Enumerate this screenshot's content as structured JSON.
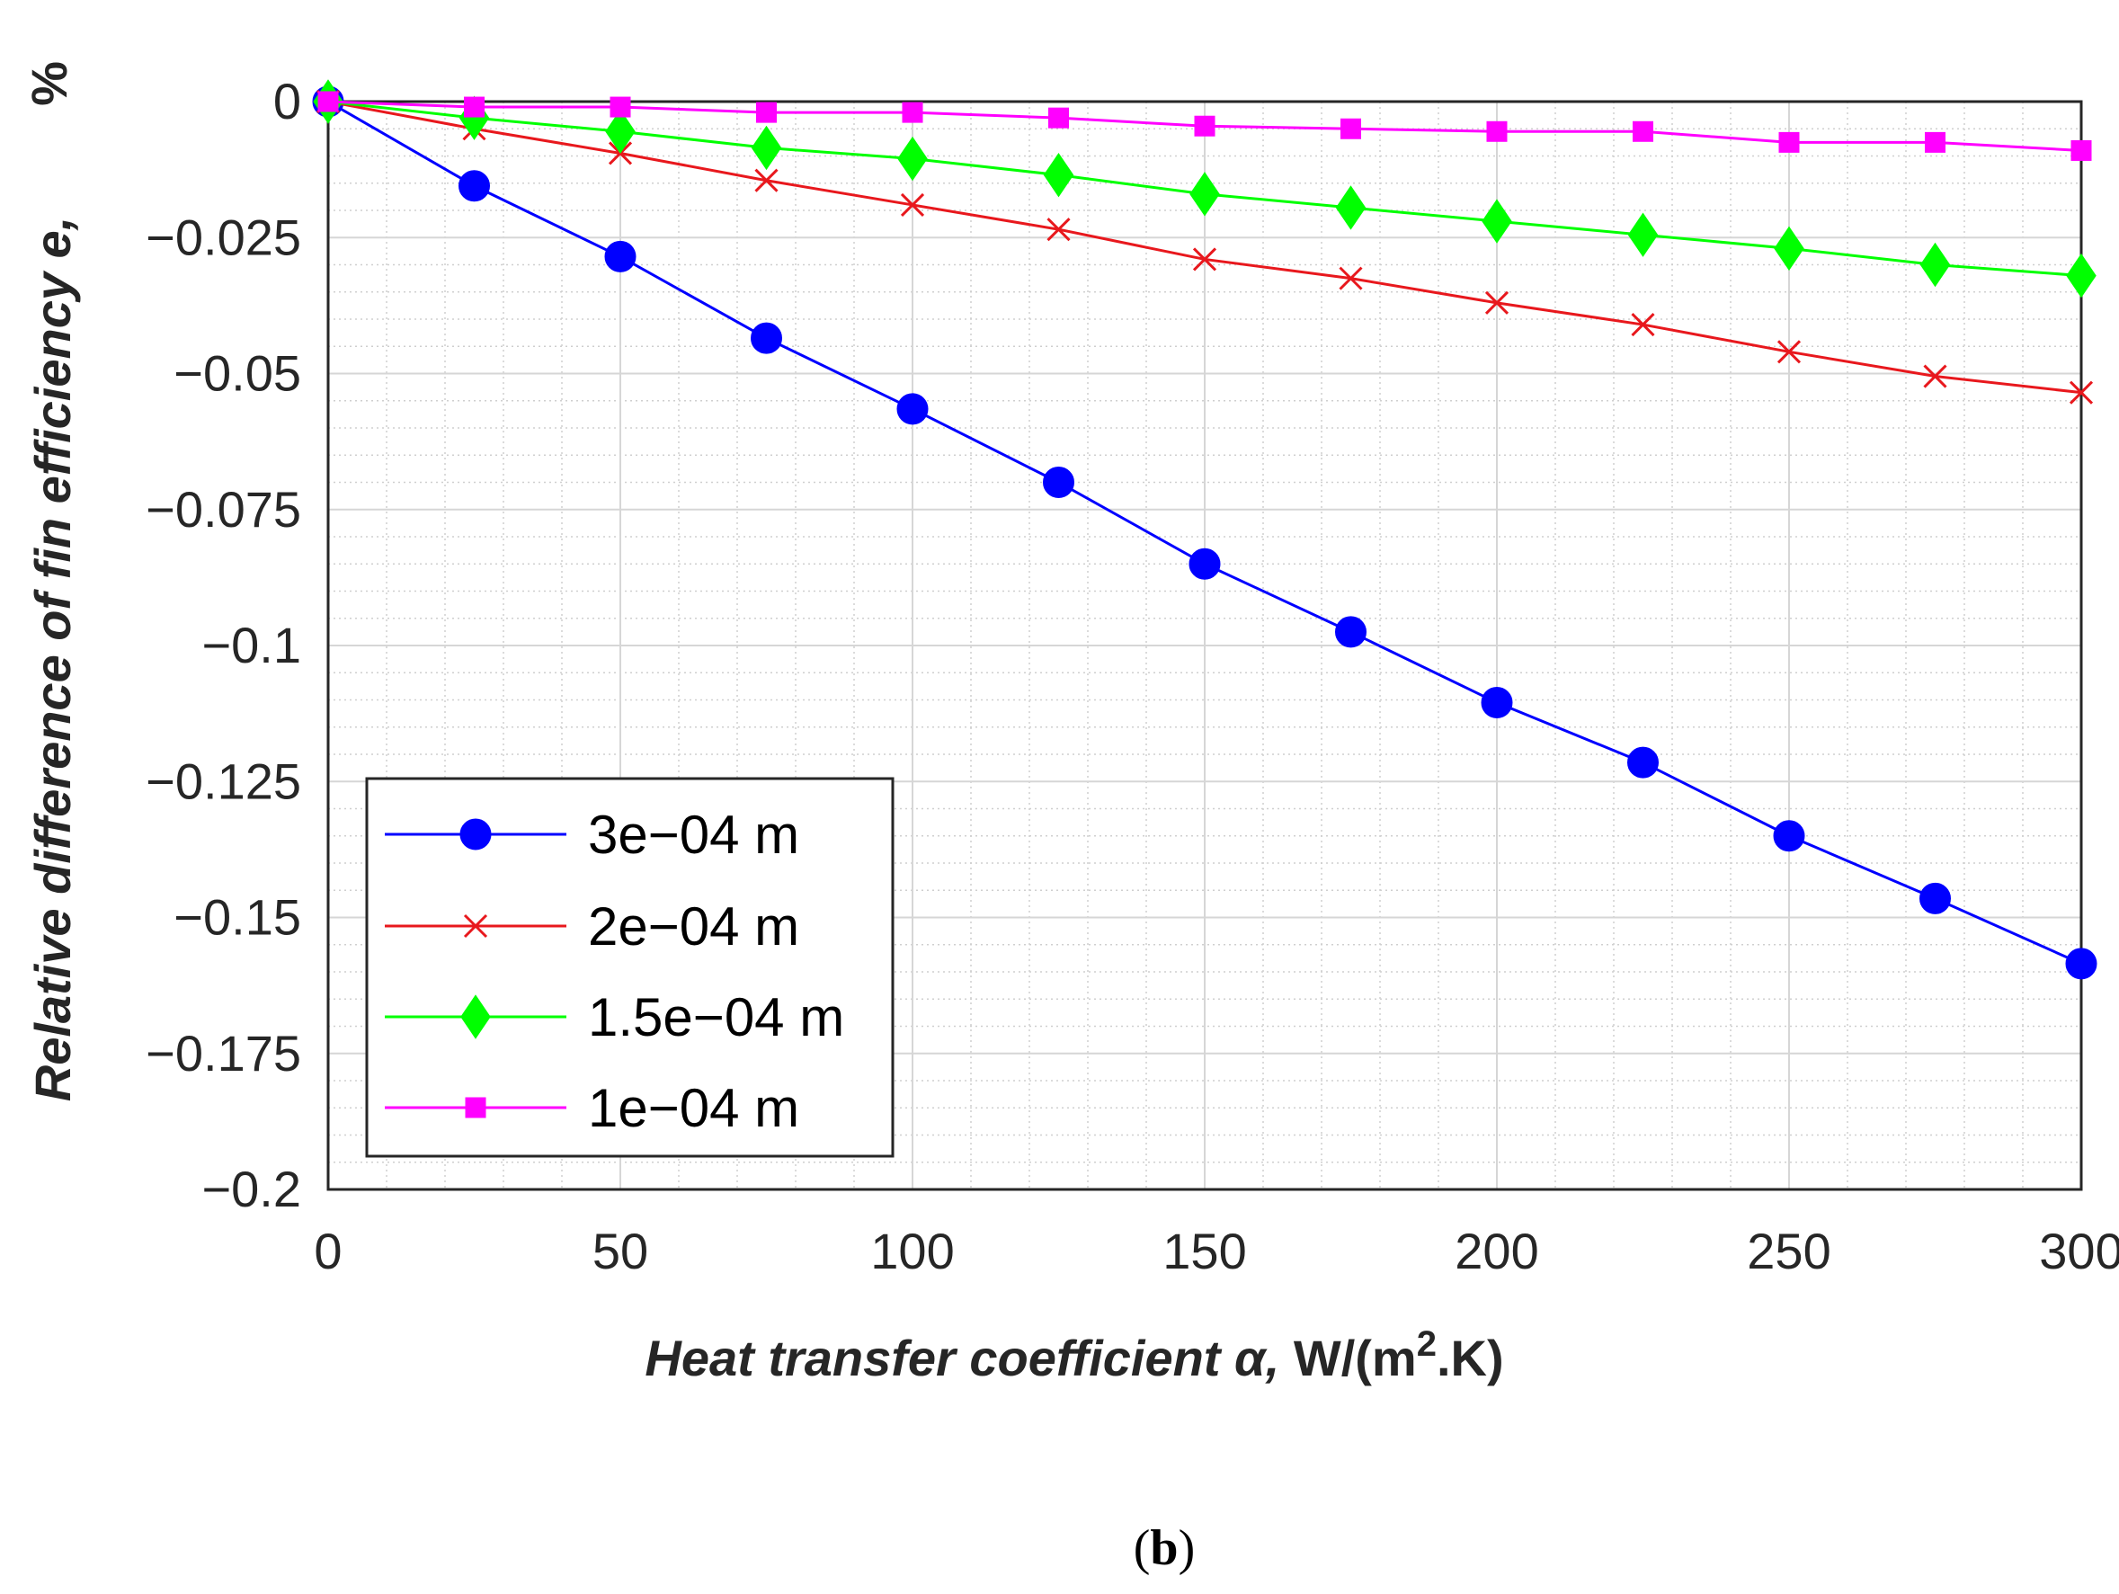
{
  "chart_data": {
    "type": "line",
    "x": [
      0,
      25,
      50,
      75,
      100,
      125,
      150,
      175,
      200,
      225,
      250,
      275,
      300
    ],
    "series": [
      {
        "name": "3e−04 m",
        "color": "#0000ff",
        "marker": "circle",
        "values": [
          0,
          -0.0155,
          -0.0285,
          -0.0435,
          -0.0565,
          -0.07,
          -0.085,
          -0.0975,
          -0.1105,
          -0.1215,
          -0.135,
          -0.1465,
          -0.1585
        ]
      },
      {
        "name": "2e−04 m",
        "color": "#e8181d",
        "marker": "x",
        "values": [
          0,
          -0.005,
          -0.0095,
          -0.0145,
          -0.019,
          -0.0235,
          -0.029,
          -0.0325,
          -0.037,
          -0.041,
          -0.046,
          -0.0505,
          -0.0535
        ]
      },
      {
        "name": "1.5e−04 m",
        "color": "#00ff00",
        "marker": "diamond",
        "values": [
          0,
          -0.003,
          -0.0055,
          -0.0085,
          -0.0105,
          -0.0135,
          -0.017,
          -0.0195,
          -0.022,
          -0.0245,
          -0.027,
          -0.03,
          -0.032
        ]
      },
      {
        "name": "1e−04 m",
        "color": "#ff00ff",
        "marker": "square",
        "values": [
          0,
          -0.001,
          -0.001,
          -0.002,
          -0.002,
          -0.003,
          -0.0045,
          -0.005,
          -0.0055,
          -0.0055,
          -0.0075,
          -0.0075,
          -0.009
        ]
      }
    ],
    "xlim": [
      0,
      300
    ],
    "ylim": [
      -0.2,
      0
    ],
    "xticks": [
      0,
      50,
      100,
      150,
      200,
      250,
      300
    ],
    "yticks": [
      0,
      -0.025,
      -0.05,
      -0.075,
      -0.1,
      -0.125,
      -0.15,
      -0.175,
      -0.2
    ],
    "xtick_labels": [
      "0",
      "50",
      "100",
      "150",
      "200",
      "250",
      "300"
    ],
    "ytick_labels": [
      "0",
      "−0.025",
      "−0.05",
      "−0.075",
      "−0.1",
      "−0.125",
      "−0.15",
      "−0.175",
      "−0.2"
    ],
    "xlabel_main": "Heat transfer coefficient α, ",
    "xlabel_unit_pre": "W/(m",
    "xlabel_unit_sup": "2",
    "xlabel_unit_post": ".K)",
    "ylabel_main": "Relative difference of fin efficiency e,",
    "ylabel_unit": "%",
    "grid": true,
    "legend_position": "bottom-left"
  },
  "caption": {
    "open": "(",
    "letter": "b",
    "close": ")"
  }
}
